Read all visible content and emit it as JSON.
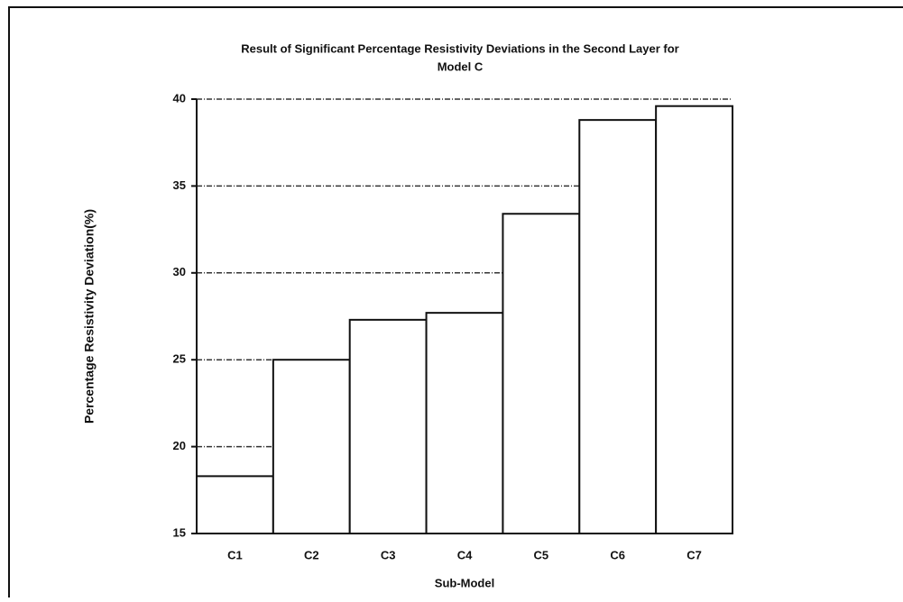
{
  "chart_data": {
    "type": "bar",
    "title": [
      "Result of Significant Percentage  Resistivity Deviations in  the Second Layer for",
      "Model C"
    ],
    "x_label": "Sub-Model",
    "y_label": "Percentage Resistivity Deviation(%)",
    "categories": [
      "C1",
      "C2",
      "C3",
      "C4",
      "C5",
      "C6",
      "C7"
    ],
    "values": [
      18.3,
      25.0,
      27.3,
      27.7,
      33.4,
      38.8,
      39.6
    ],
    "color": "#ffffff",
    "ylim": [
      15,
      40
    ],
    "yticks": [
      15,
      20,
      25,
      30,
      35,
      40
    ],
    "grid": true
  }
}
